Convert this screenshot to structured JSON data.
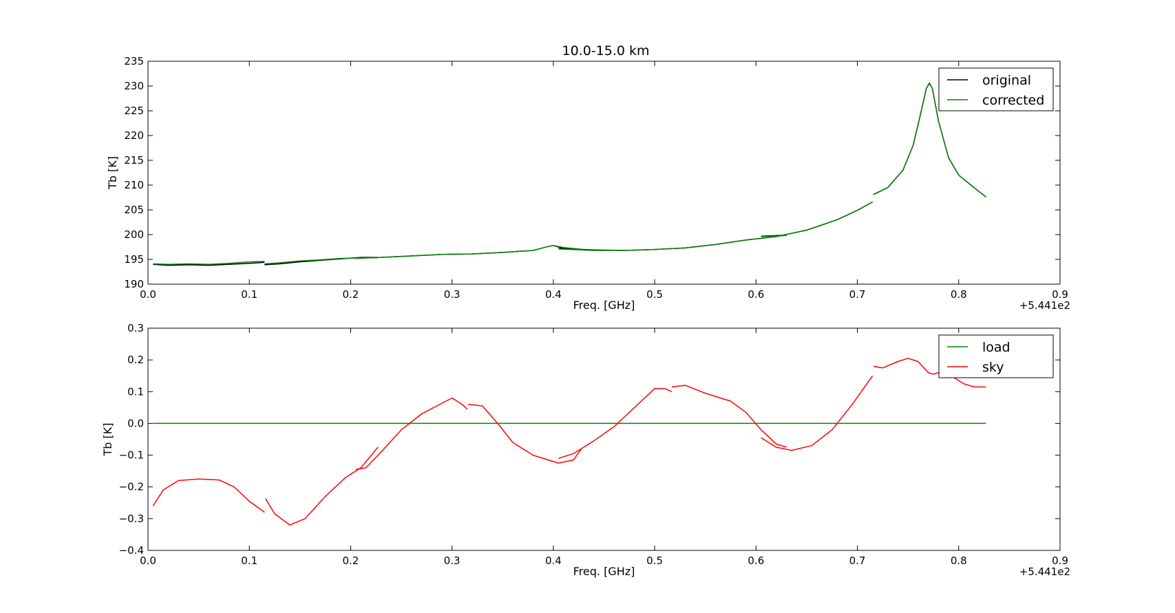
{
  "chart_data": [
    {
      "type": "line",
      "title": "10.0-15.0 km",
      "xlabel": "Freq. [GHz]",
      "ylabel": "Tb [K]",
      "x_offset_label": "+5.441e2",
      "xlim": [
        0.0,
        0.9
      ],
      "ylim": [
        190,
        235
      ],
      "xticks": [
        "0.0",
        "0.1",
        "0.2",
        "0.3",
        "0.4",
        "0.5",
        "0.6",
        "0.7",
        "0.8",
        "0.9"
      ],
      "yticks": [
        "190",
        "195",
        "200",
        "205",
        "210",
        "215",
        "220",
        "225",
        "230",
        "235"
      ],
      "legend": {
        "placement": "top-right",
        "entries": [
          "original",
          "corrected"
        ]
      },
      "colors": {
        "original": "#000000",
        "corrected": "#008000"
      },
      "series": [
        {
          "name": "original",
          "segments": [
            [
              [
                0.005,
                194.0
              ],
              [
                0.02,
                193.8
              ],
              [
                0.04,
                193.9
              ],
              [
                0.06,
                193.8
              ],
              [
                0.08,
                194.0
              ],
              [
                0.1,
                194.2
              ],
              [
                0.115,
                194.4
              ]
            ],
            [
              [
                0.115,
                193.9
              ],
              [
                0.13,
                194.1
              ],
              [
                0.15,
                194.5
              ],
              [
                0.17,
                194.8
              ],
              [
                0.19,
                195.1
              ],
              [
                0.21,
                195.4
              ],
              [
                0.227,
                195.4
              ]
            ],
            [
              [
                0.205,
                195.3
              ],
              [
                0.23,
                195.4
              ],
              [
                0.26,
                195.7
              ],
              [
                0.29,
                196.0
              ],
              [
                0.32,
                196.1
              ],
              [
                0.35,
                196.4
              ],
              [
                0.38,
                196.8
              ],
              [
                0.395,
                197.6
              ],
              [
                0.4,
                197.8
              ],
              [
                0.41,
                197.2
              ],
              [
                0.43,
                196.9
              ]
            ],
            [
              [
                0.405,
                197.2
              ],
              [
                0.44,
                196.9
              ],
              [
                0.47,
                196.8
              ],
              [
                0.5,
                197.0
              ],
              [
                0.53,
                197.3
              ],
              [
                0.56,
                198.0
              ],
              [
                0.59,
                198.9
              ],
              [
                0.62,
                199.6
              ],
              [
                0.65,
                200.9
              ],
              [
                0.68,
                203.0
              ],
              [
                0.7,
                204.9
              ],
              [
                0.715,
                206.6
              ]
            ],
            [
              [
                0.605,
                199.7
              ],
              [
                0.63,
                199.9
              ]
            ],
            [
              [
                0.716,
                208.1
              ],
              [
                0.73,
                209.5
              ],
              [
                0.745,
                213.0
              ],
              [
                0.755,
                218.0
              ],
              [
                0.762,
                224.0
              ],
              [
                0.768,
                229.5
              ],
              [
                0.771,
                230.6
              ],
              [
                0.774,
                229.5
              ],
              [
                0.78,
                223.0
              ],
              [
                0.79,
                215.5
              ],
              [
                0.8,
                212.0
              ],
              [
                0.815,
                209.5
              ],
              [
                0.827,
                207.6
              ]
            ]
          ]
        },
        {
          "name": "corrected",
          "segments": [
            [
              [
                0.005,
                194.1
              ],
              [
                0.02,
                194.0
              ],
              [
                0.04,
                194.1
              ],
              [
                0.06,
                194.0
              ],
              [
                0.08,
                194.2
              ],
              [
                0.1,
                194.5
              ],
              [
                0.115,
                194.6
              ]
            ],
            [
              [
                0.115,
                194.1
              ],
              [
                0.13,
                194.3
              ],
              [
                0.15,
                194.7
              ],
              [
                0.17,
                194.9
              ],
              [
                0.19,
                195.2
              ],
              [
                0.21,
                195.3
              ],
              [
                0.227,
                195.3
              ]
            ],
            [
              [
                0.205,
                195.2
              ],
              [
                0.23,
                195.4
              ],
              [
                0.26,
                195.7
              ],
              [
                0.29,
                196.0
              ],
              [
                0.32,
                196.1
              ],
              [
                0.35,
                196.4
              ],
              [
                0.38,
                196.8
              ],
              [
                0.395,
                197.6
              ],
              [
                0.4,
                197.8
              ],
              [
                0.41,
                197.4
              ],
              [
                0.43,
                197.0
              ]
            ],
            [
              [
                0.405,
                197.1
              ],
              [
                0.44,
                196.8
              ],
              [
                0.47,
                196.8
              ],
              [
                0.5,
                197.0
              ],
              [
                0.53,
                197.3
              ],
              [
                0.56,
                198.0
              ],
              [
                0.59,
                198.9
              ],
              [
                0.62,
                199.6
              ],
              [
                0.65,
                200.9
              ],
              [
                0.68,
                203.0
              ],
              [
                0.7,
                204.9
              ],
              [
                0.715,
                206.6
              ]
            ],
            [
              [
                0.605,
                199.6
              ],
              [
                0.63,
                199.8
              ]
            ],
            [
              [
                0.716,
                208.1
              ],
              [
                0.73,
                209.5
              ],
              [
                0.745,
                213.0
              ],
              [
                0.755,
                218.0
              ],
              [
                0.762,
                224.0
              ],
              [
                0.768,
                229.5
              ],
              [
                0.771,
                230.5
              ],
              [
                0.774,
                229.5
              ],
              [
                0.78,
                223.0
              ],
              [
                0.79,
                215.5
              ],
              [
                0.8,
                212.0
              ],
              [
                0.815,
                209.5
              ],
              [
                0.827,
                207.6
              ]
            ]
          ]
        }
      ]
    },
    {
      "type": "line",
      "title": "",
      "xlabel": "Freq. [GHz]",
      "ylabel": "Tb [K]",
      "x_offset_label": "+5.441e2",
      "xlim": [
        0.0,
        0.9
      ],
      "ylim": [
        -0.4,
        0.3
      ],
      "xticks": [
        "0.0",
        "0.1",
        "0.2",
        "0.3",
        "0.4",
        "0.5",
        "0.6",
        "0.7",
        "0.8",
        "0.9"
      ],
      "yticks": [
        "−0.4",
        "−0.3",
        "−0.2",
        "−0.1",
        "0.0",
        "0.1",
        "0.2",
        "0.3"
      ],
      "legend": {
        "placement": "top-right",
        "entries": [
          "load",
          "sky"
        ]
      },
      "colors": {
        "load": "#008000",
        "sky": "#ff0000"
      },
      "series": [
        {
          "name": "load",
          "segments": [
            [
              [
                0.005,
                0.0
              ],
              [
                0.827,
                0.0
              ]
            ]
          ]
        },
        {
          "name": "sky",
          "segments": [
            [
              [
                0.005,
                -0.26
              ],
              [
                0.015,
                -0.21
              ],
              [
                0.03,
                -0.18
              ],
              [
                0.05,
                -0.175
              ],
              [
                0.07,
                -0.178
              ],
              [
                0.085,
                -0.2
              ],
              [
                0.1,
                -0.245
              ],
              [
                0.115,
                -0.28
              ]
            ],
            [
              [
                0.116,
                -0.237
              ],
              [
                0.125,
                -0.285
              ],
              [
                0.14,
                -0.32
              ],
              [
                0.155,
                -0.3
              ],
              [
                0.175,
                -0.23
              ],
              [
                0.195,
                -0.17
              ],
              [
                0.21,
                -0.14
              ],
              [
                0.227,
                -0.075
              ]
            ],
            [
              [
                0.205,
                -0.145
              ],
              [
                0.215,
                -0.14
              ],
              [
                0.23,
                -0.09
              ],
              [
                0.25,
                -0.02
              ],
              [
                0.27,
                0.03
              ],
              [
                0.3,
                0.08
              ],
              [
                0.31,
                0.06
              ],
              [
                0.315,
                0.045
              ]
            ],
            [
              [
                0.316,
                0.06
              ],
              [
                0.33,
                0.055
              ],
              [
                0.345,
                0.0
              ],
              [
                0.36,
                -0.06
              ],
              [
                0.38,
                -0.1
              ],
              [
                0.405,
                -0.125
              ],
              [
                0.42,
                -0.115
              ],
              [
                0.428,
                -0.078
              ]
            ],
            [
              [
                0.405,
                -0.11
              ],
              [
                0.42,
                -0.095
              ],
              [
                0.44,
                -0.055
              ],
              [
                0.46,
                -0.01
              ],
              [
                0.48,
                0.05
              ],
              [
                0.5,
                0.11
              ],
              [
                0.51,
                0.11
              ],
              [
                0.517,
                0.1
              ]
            ],
            [
              [
                0.517,
                0.115
              ],
              [
                0.53,
                0.12
              ],
              [
                0.55,
                0.095
              ],
              [
                0.575,
                0.07
              ],
              [
                0.59,
                0.035
              ],
              [
                0.605,
                -0.02
              ],
              [
                0.62,
                -0.065
              ],
              [
                0.63,
                -0.075
              ]
            ],
            [
              [
                0.605,
                -0.045
              ],
              [
                0.62,
                -0.075
              ],
              [
                0.635,
                -0.085
              ],
              [
                0.655,
                -0.07
              ],
              [
                0.675,
                -0.02
              ],
              [
                0.695,
                0.06
              ],
              [
                0.715,
                0.15
              ]
            ],
            [
              [
                0.716,
                0.18
              ],
              [
                0.725,
                0.175
              ],
              [
                0.74,
                0.195
              ],
              [
                0.75,
                0.205
              ],
              [
                0.76,
                0.195
              ],
              [
                0.77,
                0.16
              ],
              [
                0.775,
                0.155
              ],
              [
                0.78,
                0.16
              ],
              [
                0.79,
                0.155
              ],
              [
                0.805,
                0.125
              ],
              [
                0.815,
                0.115
              ],
              [
                0.827,
                0.115
              ]
            ]
          ]
        }
      ]
    }
  ]
}
